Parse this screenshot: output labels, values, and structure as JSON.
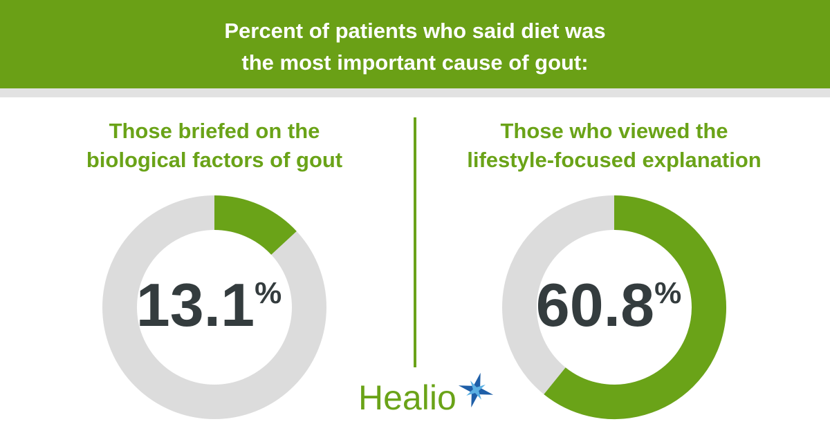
{
  "header": {
    "title": [
      "Percent of patients who said diet was",
      "the most important cause of gout:"
    ]
  },
  "chart_data": [
    {
      "type": "donut",
      "title": [
        "Those briefed on the",
        "biological factors of gout"
      ],
      "values": [
        13.1
      ],
      "value_labels": [
        "13.1%"
      ],
      "color": "#6aa318",
      "track_color": "#dcdcdc"
    },
    {
      "type": "donut",
      "title": [
        "Those who viewed the",
        "lifestyle-focused explanation"
      ],
      "values": [
        60.8
      ],
      "value_labels": [
        "60.8%"
      ],
      "color": "#6aa318",
      "track_color": "#dcdcdc"
    }
  ],
  "logo": "Healio"
}
